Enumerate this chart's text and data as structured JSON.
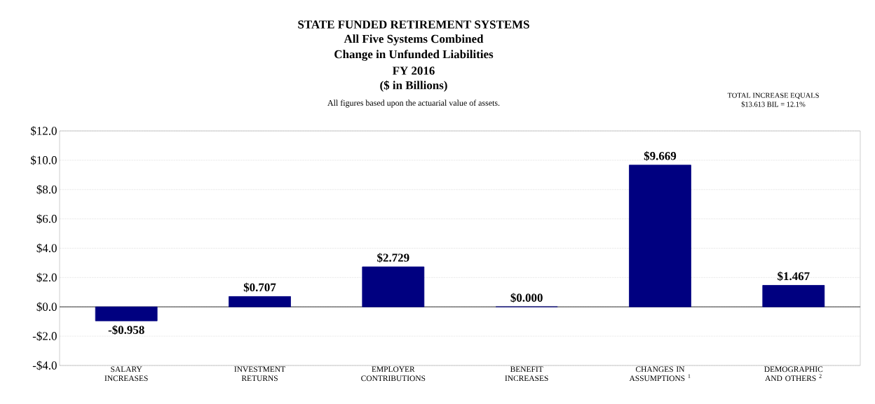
{
  "chart_data": {
    "type": "bar",
    "title": "STATE FUNDED RETIREMENT SYSTEMS",
    "subtitle": "All figures based upon the actuarial value of assets.",
    "annotations": [
      "All Five Systems Combined",
      "Change in Unfunded Liabilities",
      "FY 2016",
      "($ in Billions)",
      "TOTAL INCREASE EQUALS",
      "$13.613 BIL = 12.1%"
    ],
    "categories": [
      "SALARY INCREASES",
      "INVESTMENT RETURNS",
      "EMPLOYER CONTRIBUTIONS",
      "BENEFIT INCREASES",
      "CHANGES IN ASSUMPTIONS $^{1}$",
      "DEMOGRAPHIC AND OTHERS $^{2}$"
    ],
    "values": [
      -0.958,
      0.707,
      2.729,
      0.0,
      9.669,
      1.467
    ],
    "value_labels": [
      "-$0.958",
      "$0.707",
      "$2.729",
      "$0.000",
      "$9.669",
      "$1.467"
    ],
    "color": "#000080",
    "ylim": [
      -4,
      12
    ],
    "yticks": [
      {
        "value": -4,
        "label": "-$4.0"
      },
      {
        "value": -2,
        "label": "-$2.0"
      },
      {
        "value": 0,
        "label": "$0.0"
      },
      {
        "value": 2,
        "label": "$2.0"
      },
      {
        "value": 4,
        "label": "$4.0"
      },
      {
        "value": 6,
        "label": "$6.0"
      },
      {
        "value": 8,
        "label": "$8.0"
      },
      {
        "value": 10,
        "label": "$10.0"
      },
      {
        "value": 12,
        "label": "$12.0"
      }
    ],
    "grid": "y"
  }
}
